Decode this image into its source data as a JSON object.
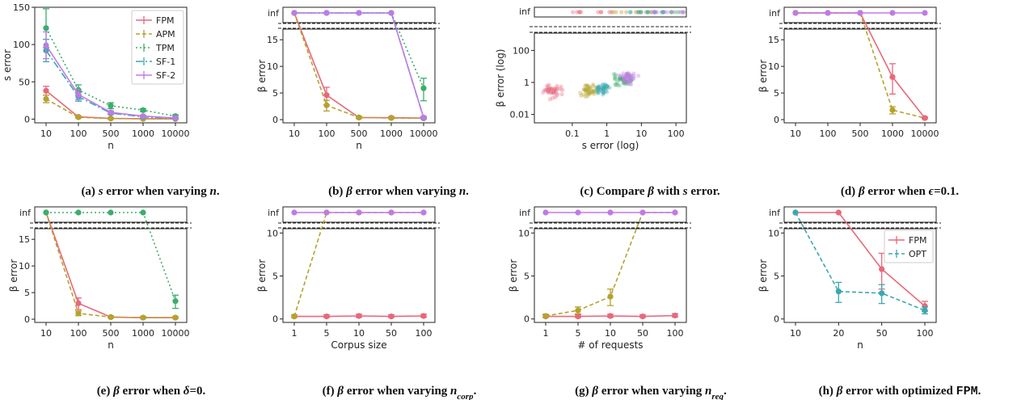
{
  "colors": {
    "FPM": "#E8687A",
    "APM": "#B5A22E",
    "TPM": "#3AAE6B",
    "SF-1": "#3AA8B0",
    "SF-2": "#C07AE6",
    "OPT": "#3AA8B0"
  },
  "chart_data": [
    {
      "type": "line",
      "id": "a",
      "caption": [
        "(a) ",
        "s",
        " error when varying ",
        "n",
        "."
      ],
      "categories": [
        "10",
        "100",
        "500",
        "1000",
        "10000"
      ],
      "ylabel": "s error",
      "xlabel": "n",
      "ylim": [
        -5,
        150
      ],
      "yticks": [
        "0",
        "50",
        "100",
        "150"
      ],
      "legend": [
        "FPM",
        "APM",
        "TPM",
        "SF-1",
        "SF-2"
      ],
      "legend_position": "top-right",
      "series": [
        {
          "name": "FPM",
          "values": [
            38,
            3,
            1,
            0.5,
            0.3
          ],
          "err": [
            6,
            1,
            0.5,
            0.3,
            0.2
          ]
        },
        {
          "name": "APM",
          "values": [
            27,
            2.5,
            0.7,
            0.4,
            0.2
          ],
          "err": [
            5,
            1,
            0.5,
            0.3,
            0.2
          ]
        },
        {
          "name": "TPM",
          "values": [
            122,
            39,
            18,
            12,
            4
          ],
          "err": [
            26,
            7,
            4,
            2,
            1.5
          ]
        },
        {
          "name": "SF-1",
          "values": [
            92,
            30,
            8,
            3,
            1
          ],
          "err": [
            15,
            6,
            2,
            1,
            0.5
          ]
        },
        {
          "name": "SF-2",
          "values": [
            99,
            33,
            9,
            4,
            1.5
          ],
          "err": [
            18,
            7,
            2,
            1,
            0.5
          ]
        }
      ]
    },
    {
      "type": "line",
      "id": "b",
      "caption": [
        "(b) ",
        "β",
        " error when varying ",
        "n",
        "."
      ],
      "categories": [
        "10",
        "100",
        "500",
        "1000",
        "10000"
      ],
      "ylabel": "β error",
      "xlabel": "n",
      "ylim": [
        -0.6,
        17
      ],
      "yticks": [
        "0",
        "5",
        "10",
        "15"
      ],
      "inf_label": "inf",
      "series": [
        {
          "name": "FPM",
          "values": [
            "inf",
            4.6,
            0.4,
            0.35,
            0.3
          ]
        },
        {
          "name": "APM",
          "values": [
            "inf",
            2.7,
            0.4,
            0.3,
            0.25
          ]
        },
        {
          "name": "TPM",
          "values": [
            "inf",
            "inf",
            "inf",
            "inf",
            5.9
          ]
        },
        {
          "name": "SF-1",
          "values": [
            "inf",
            "inf",
            "inf",
            "inf",
            0.3
          ]
        },
        {
          "name": "SF-2",
          "values": [
            "inf",
            "inf",
            "inf",
            "inf",
            0.4
          ]
        }
      ]
    },
    {
      "type": "scatter",
      "id": "c",
      "caption": [
        "(c) Compare ",
        "β",
        " with ",
        "s",
        " error."
      ],
      "xlabel": "s error (log)",
      "ylabel": "β error (log)",
      "xticks": [
        "0.1",
        "1",
        "10",
        "100"
      ],
      "yticks": [
        "0.01",
        "1",
        "100"
      ],
      "inf_label": "inf",
      "x_scale": "log",
      "y_scale": "log",
      "xlim": [
        0.008,
        200
      ],
      "ylim": [
        0.003,
        1200
      ],
      "clusters": [
        {
          "name": "FPM",
          "cx": 0.025,
          "cy": 0.3,
          "n": 40
        },
        {
          "name": "APM",
          "cx": 0.3,
          "cy": 0.3,
          "n": 40
        },
        {
          "name": "TPM",
          "cx": 3.0,
          "cy": 1.5,
          "n": 40
        },
        {
          "name": "SF-1",
          "cx": 0.7,
          "cy": 0.4,
          "n": 40
        },
        {
          "name": "SF-2",
          "cx": 4.0,
          "cy": 2.0,
          "n": 40
        }
      ]
    },
    {
      "type": "line",
      "id": "d",
      "caption": [
        "(d) ",
        "β",
        " error when ",
        "ϵ",
        "=0.1."
      ],
      "categories": [
        "10",
        "100",
        "500",
        "1000",
        "10000"
      ],
      "ylabel": "β error",
      "xlabel": "",
      "ylim": [
        -0.6,
        17
      ],
      "yticks": [
        "0",
        "5",
        "10",
        "15"
      ],
      "inf_label": "inf",
      "series": [
        {
          "name": "APM",
          "values": [
            "inf",
            "inf",
            "inf",
            1.8,
            0.3
          ]
        },
        {
          "name": "FPM",
          "values": [
            "inf",
            "inf",
            "inf",
            8.0,
            0.3
          ]
        },
        {
          "name": "SF-2",
          "values": [
            "inf",
            "inf",
            "inf",
            "inf",
            "inf"
          ]
        }
      ]
    },
    {
      "type": "line",
      "id": "e",
      "caption": [
        "(e) ",
        "β",
        " error when ",
        "δ",
        "=0."
      ],
      "categories": [
        "10",
        "100",
        "500",
        "1000",
        "10000"
      ],
      "ylabel": "β error",
      "xlabel": "n",
      "ylim": [
        -0.6,
        17
      ],
      "yticks": [
        "0",
        "5",
        "10",
        "15"
      ],
      "inf_label": "inf",
      "series": [
        {
          "name": "FPM",
          "values": [
            "inf",
            3.0,
            0.4,
            0.3,
            0.3
          ]
        },
        {
          "name": "APM",
          "values": [
            "inf",
            1.1,
            0.4,
            0.3,
            0.3
          ]
        },
        {
          "name": "TPM",
          "values": [
            "inf",
            "inf",
            "inf",
            "inf",
            3.4
          ]
        }
      ]
    },
    {
      "type": "line",
      "id": "f",
      "caption": [
        "(f) ",
        "β",
        " error when varying ",
        "n",
        "corp",
        "."
      ],
      "categories": [
        "1",
        "5",
        "10",
        "50",
        "100"
      ],
      "ylabel": "β error",
      "xlabel": "Corpus size",
      "ylim": [
        -0.4,
        10.5
      ],
      "yticks": [
        "0",
        "5",
        "10"
      ],
      "inf_label": "inf",
      "series": [
        {
          "name": "FPM",
          "values": [
            0.3,
            0.3,
            0.35,
            0.3,
            0.35
          ]
        },
        {
          "name": "APM",
          "values": [
            0.3,
            "inf",
            "inf",
            "inf",
            "inf"
          ]
        },
        {
          "name": "SF-2",
          "values": [
            "inf",
            "inf",
            "inf",
            "inf",
            "inf"
          ]
        }
      ]
    },
    {
      "type": "line",
      "id": "g",
      "caption": [
        "(g) ",
        "β",
        " error when varying ",
        "n",
        "req",
        "."
      ],
      "categories": [
        "1",
        "5",
        "10",
        "50",
        "100"
      ],
      "ylabel": "β error",
      "xlabel": "# of requests",
      "ylim": [
        -0.4,
        10.5
      ],
      "yticks": [
        "0",
        "5",
        "10"
      ],
      "inf_label": "inf",
      "series": [
        {
          "name": "FPM",
          "values": [
            0.3,
            0.3,
            0.35,
            0.3,
            0.4
          ]
        },
        {
          "name": "APM",
          "values": [
            0.35,
            1.0,
            2.6,
            "inf",
            "inf"
          ]
        },
        {
          "name": "SF-2",
          "values": [
            "inf",
            "inf",
            "inf",
            "inf",
            "inf"
          ]
        }
      ]
    },
    {
      "type": "line",
      "id": "h",
      "caption": [
        "(h) ",
        "β",
        " error with optimized ",
        "FPM",
        "."
      ],
      "categories": [
        "10",
        "20",
        "50",
        "100"
      ],
      "ylabel": "β error",
      "xlabel": "n",
      "ylim": [
        -0.4,
        10.5
      ],
      "yticks": [
        "0",
        "5",
        "10"
      ],
      "inf_label": "inf",
      "legend": [
        "FPM",
        "OPT"
      ],
      "legend_position": "center-right",
      "series": [
        {
          "name": "FPM",
          "values": [
            "inf",
            "inf",
            5.8,
            1.5
          ]
        },
        {
          "name": "OPT",
          "values": [
            "inf",
            3.2,
            3.0,
            1.0
          ]
        }
      ]
    }
  ]
}
